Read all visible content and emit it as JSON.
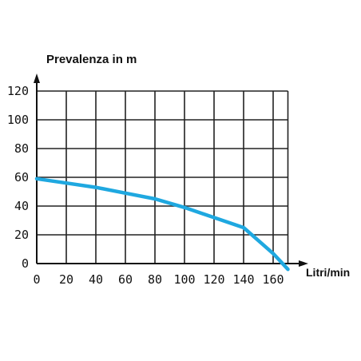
{
  "chart_data": {
    "type": "line",
    "title": "",
    "ylabel": "Prevalenza in m",
    "xlabel": "Litri/min",
    "x_ticks": [
      0,
      20,
      40,
      60,
      80,
      100,
      120,
      140,
      160
    ],
    "y_ticks": [
      0,
      20,
      40,
      60,
      80,
      100,
      120
    ],
    "xlim": [
      0,
      170
    ],
    "ylim": [
      0,
      120
    ],
    "grid": true,
    "series": [
      {
        "color": "#1fa8e0",
        "x": [
          0,
          20,
          40,
          60,
          80,
          100,
          120,
          140,
          150,
          160,
          170
        ],
        "y": [
          59,
          56,
          53,
          49,
          45,
          39,
          32,
          25,
          16,
          7,
          -4
        ]
      }
    ]
  }
}
